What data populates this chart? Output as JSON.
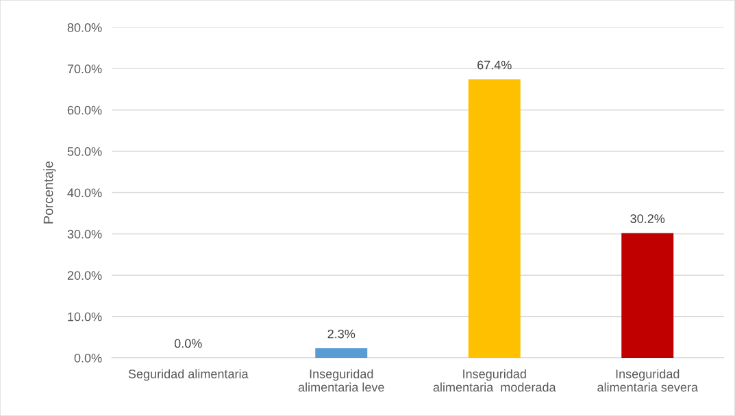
{
  "chart_data": {
    "type": "bar",
    "ylabel": "Porcentaje",
    "categories": [
      "Seguridad alimentaria",
      "Inseguridad\nalimentaria leve",
      "Inseguridad\nalimentaria  moderada",
      "Inseguridad\nalimentaria severa"
    ],
    "values": [
      0,
      2.3,
      67.4,
      30.2
    ],
    "colors": [
      "#4472c4",
      "#5b9bd5",
      "#ffc000",
      "#c00000"
    ],
    "value_labels": [
      "0.0%",
      "2.3%",
      "67.4%",
      "30.2%"
    ],
    "ylim": [
      0,
      80
    ],
    "yticks": [
      {
        "value": 0,
        "label": "0.0%"
      },
      {
        "value": 10,
        "label": "10.0%"
      },
      {
        "value": 20,
        "label": "20.0%"
      },
      {
        "value": 30,
        "label": "30.0%"
      },
      {
        "value": 40,
        "label": "40.0%"
      },
      {
        "value": 50,
        "label": "50.0%"
      },
      {
        "value": 60,
        "label": "60.0%"
      },
      {
        "value": 70,
        "label": "70.0%"
      },
      {
        "value": 80,
        "label": "80.0%"
      }
    ],
    "grid": "y"
  }
}
